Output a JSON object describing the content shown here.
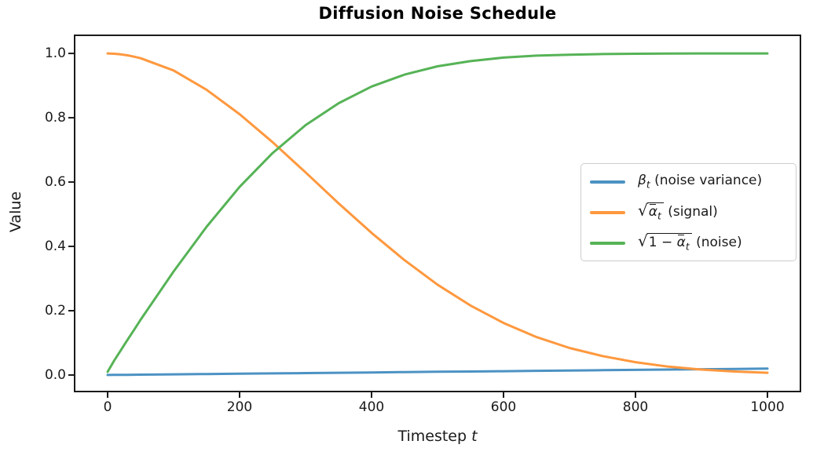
{
  "title": "Diffusion Noise Schedule",
  "axes": {
    "xlabel_text": "Timestep ",
    "xlabel_var": "t",
    "ylabel": "Value",
    "xticks": {
      "values": [
        0,
        200,
        400,
        600,
        800,
        1000
      ],
      "labels": [
        "0",
        "200",
        "400",
        "600",
        "800",
        "1000"
      ]
    },
    "yticks": {
      "values": [
        0.0,
        0.2,
        0.4,
        0.6,
        0.8,
        1.0
      ],
      "labels": [
        "0.0",
        "0.2",
        "0.4",
        "0.6",
        "0.8",
        "1.0"
      ]
    }
  },
  "colors": {
    "blue": "#4C92C3",
    "orange": "#FF983E",
    "green": "#56B356",
    "spine": "#1a1a1a",
    "text": "#1a1a1a"
  },
  "legend": {
    "items": [
      {
        "color_key": "blue",
        "sqrt": false,
        "pre": "",
        "base": "β",
        "base_bar": false,
        "sub": "t",
        "suffix": " (noise variance)"
      },
      {
        "color_key": "orange",
        "sqrt": true,
        "pre": "",
        "base": "α",
        "base_bar": true,
        "sub": "t",
        "suffix": " (signal)"
      },
      {
        "color_key": "green",
        "sqrt": true,
        "pre": "1 − ",
        "base": "α",
        "base_bar": true,
        "sub": "t",
        "suffix": " (noise)"
      }
    ]
  },
  "chart_data": {
    "type": "line",
    "title": "Diffusion Noise Schedule",
    "xlabel": "Timestep t",
    "ylabel": "Value",
    "grid": false,
    "legend_position": "center right",
    "xlim": [
      -50,
      1050
    ],
    "ylim": [
      -0.0513,
      1.0563
    ],
    "x": [
      0,
      10,
      20,
      30,
      40,
      50,
      100,
      150,
      200,
      250,
      300,
      350,
      400,
      450,
      500,
      550,
      600,
      650,
      700,
      750,
      800,
      850,
      900,
      950,
      1000
    ],
    "series": [
      {
        "name": "beta_t (noise variance)",
        "color_key": "blue",
        "values": [
          0.0001,
          0.0003,
          0.0005,
          0.0007,
          0.0009,
          0.0011,
          0.0021,
          0.0031,
          0.0041,
          0.0051,
          0.0061,
          0.0071,
          0.0081,
          0.0091,
          0.0101,
          0.011,
          0.012,
          0.013,
          0.014,
          0.015,
          0.016,
          0.017,
          0.018,
          0.019,
          0.02
        ]
      },
      {
        "name": "sqrt(alpha_bar_t) (signal)",
        "color_key": "orange",
        "values": [
          1.0,
          0.999,
          0.997,
          0.994,
          0.99,
          0.985,
          0.947,
          0.887,
          0.811,
          0.724,
          0.63,
          0.534,
          0.442,
          0.357,
          0.281,
          0.216,
          0.162,
          0.118,
          0.084,
          0.059,
          0.04,
          0.026,
          0.017,
          0.011,
          0.007
        ]
      },
      {
        "name": "sqrt(1 - alpha_bar_t) (noise)",
        "color_key": "green",
        "values": [
          0.01,
          0.045,
          0.077,
          0.109,
          0.14,
          0.172,
          0.322,
          0.461,
          0.585,
          0.69,
          0.777,
          0.845,
          0.897,
          0.934,
          0.96,
          0.976,
          0.987,
          0.993,
          0.996,
          0.998,
          0.999,
          0.9997,
          0.9999,
          1.0,
          1.0
        ]
      }
    ]
  }
}
